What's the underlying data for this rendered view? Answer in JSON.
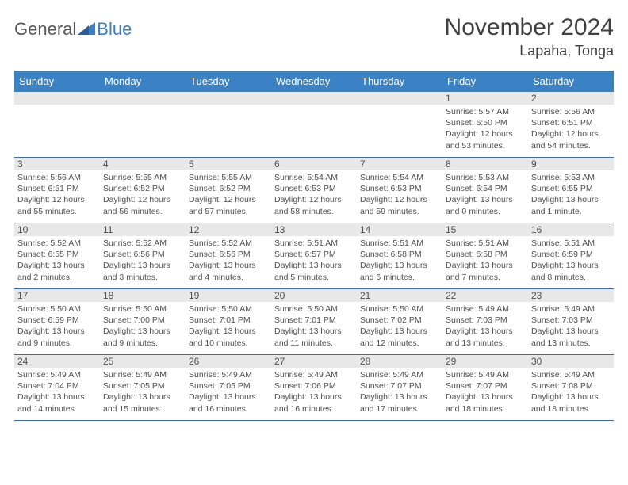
{
  "logo": {
    "general": "General",
    "blue": "Blue",
    "accent_color": "#3b7fc4"
  },
  "header": {
    "month": "November 2024",
    "location": "Lapaha, Tonga"
  },
  "colors": {
    "header_bg": "#3b82c4",
    "header_text": "#ffffff",
    "row_divider": "#3b6ea5",
    "date_strip_bg": "#e8e8e8",
    "text": "#505050"
  },
  "day_names": [
    "Sunday",
    "Monday",
    "Tuesday",
    "Wednesday",
    "Thursday",
    "Friday",
    "Saturday"
  ],
  "weeks": [
    [
      null,
      null,
      null,
      null,
      null,
      {
        "d": "1",
        "sr": "Sunrise: 5:57 AM",
        "ss": "Sunset: 6:50 PM",
        "dl1": "Daylight: 12 hours",
        "dl2": "and 53 minutes."
      },
      {
        "d": "2",
        "sr": "Sunrise: 5:56 AM",
        "ss": "Sunset: 6:51 PM",
        "dl1": "Daylight: 12 hours",
        "dl2": "and 54 minutes."
      }
    ],
    [
      {
        "d": "3",
        "sr": "Sunrise: 5:56 AM",
        "ss": "Sunset: 6:51 PM",
        "dl1": "Daylight: 12 hours",
        "dl2": "and 55 minutes."
      },
      {
        "d": "4",
        "sr": "Sunrise: 5:55 AM",
        "ss": "Sunset: 6:52 PM",
        "dl1": "Daylight: 12 hours",
        "dl2": "and 56 minutes."
      },
      {
        "d": "5",
        "sr": "Sunrise: 5:55 AM",
        "ss": "Sunset: 6:52 PM",
        "dl1": "Daylight: 12 hours",
        "dl2": "and 57 minutes."
      },
      {
        "d": "6",
        "sr": "Sunrise: 5:54 AM",
        "ss": "Sunset: 6:53 PM",
        "dl1": "Daylight: 12 hours",
        "dl2": "and 58 minutes."
      },
      {
        "d": "7",
        "sr": "Sunrise: 5:54 AM",
        "ss": "Sunset: 6:53 PM",
        "dl1": "Daylight: 12 hours",
        "dl2": "and 59 minutes."
      },
      {
        "d": "8",
        "sr": "Sunrise: 5:53 AM",
        "ss": "Sunset: 6:54 PM",
        "dl1": "Daylight: 13 hours",
        "dl2": "and 0 minutes."
      },
      {
        "d": "9",
        "sr": "Sunrise: 5:53 AM",
        "ss": "Sunset: 6:55 PM",
        "dl1": "Daylight: 13 hours",
        "dl2": "and 1 minute."
      }
    ],
    [
      {
        "d": "10",
        "sr": "Sunrise: 5:52 AM",
        "ss": "Sunset: 6:55 PM",
        "dl1": "Daylight: 13 hours",
        "dl2": "and 2 minutes."
      },
      {
        "d": "11",
        "sr": "Sunrise: 5:52 AM",
        "ss": "Sunset: 6:56 PM",
        "dl1": "Daylight: 13 hours",
        "dl2": "and 3 minutes."
      },
      {
        "d": "12",
        "sr": "Sunrise: 5:52 AM",
        "ss": "Sunset: 6:56 PM",
        "dl1": "Daylight: 13 hours",
        "dl2": "and 4 minutes."
      },
      {
        "d": "13",
        "sr": "Sunrise: 5:51 AM",
        "ss": "Sunset: 6:57 PM",
        "dl1": "Daylight: 13 hours",
        "dl2": "and 5 minutes."
      },
      {
        "d": "14",
        "sr": "Sunrise: 5:51 AM",
        "ss": "Sunset: 6:58 PM",
        "dl1": "Daylight: 13 hours",
        "dl2": "and 6 minutes."
      },
      {
        "d": "15",
        "sr": "Sunrise: 5:51 AM",
        "ss": "Sunset: 6:58 PM",
        "dl1": "Daylight: 13 hours",
        "dl2": "and 7 minutes."
      },
      {
        "d": "16",
        "sr": "Sunrise: 5:51 AM",
        "ss": "Sunset: 6:59 PM",
        "dl1": "Daylight: 13 hours",
        "dl2": "and 8 minutes."
      }
    ],
    [
      {
        "d": "17",
        "sr": "Sunrise: 5:50 AM",
        "ss": "Sunset: 6:59 PM",
        "dl1": "Daylight: 13 hours",
        "dl2": "and 9 minutes."
      },
      {
        "d": "18",
        "sr": "Sunrise: 5:50 AM",
        "ss": "Sunset: 7:00 PM",
        "dl1": "Daylight: 13 hours",
        "dl2": "and 9 minutes."
      },
      {
        "d": "19",
        "sr": "Sunrise: 5:50 AM",
        "ss": "Sunset: 7:01 PM",
        "dl1": "Daylight: 13 hours",
        "dl2": "and 10 minutes."
      },
      {
        "d": "20",
        "sr": "Sunrise: 5:50 AM",
        "ss": "Sunset: 7:01 PM",
        "dl1": "Daylight: 13 hours",
        "dl2": "and 11 minutes."
      },
      {
        "d": "21",
        "sr": "Sunrise: 5:50 AM",
        "ss": "Sunset: 7:02 PM",
        "dl1": "Daylight: 13 hours",
        "dl2": "and 12 minutes."
      },
      {
        "d": "22",
        "sr": "Sunrise: 5:49 AM",
        "ss": "Sunset: 7:03 PM",
        "dl1": "Daylight: 13 hours",
        "dl2": "and 13 minutes."
      },
      {
        "d": "23",
        "sr": "Sunrise: 5:49 AM",
        "ss": "Sunset: 7:03 PM",
        "dl1": "Daylight: 13 hours",
        "dl2": "and 13 minutes."
      }
    ],
    [
      {
        "d": "24",
        "sr": "Sunrise: 5:49 AM",
        "ss": "Sunset: 7:04 PM",
        "dl1": "Daylight: 13 hours",
        "dl2": "and 14 minutes."
      },
      {
        "d": "25",
        "sr": "Sunrise: 5:49 AM",
        "ss": "Sunset: 7:05 PM",
        "dl1": "Daylight: 13 hours",
        "dl2": "and 15 minutes."
      },
      {
        "d": "26",
        "sr": "Sunrise: 5:49 AM",
        "ss": "Sunset: 7:05 PM",
        "dl1": "Daylight: 13 hours",
        "dl2": "and 16 minutes."
      },
      {
        "d": "27",
        "sr": "Sunrise: 5:49 AM",
        "ss": "Sunset: 7:06 PM",
        "dl1": "Daylight: 13 hours",
        "dl2": "and 16 minutes."
      },
      {
        "d": "28",
        "sr": "Sunrise: 5:49 AM",
        "ss": "Sunset: 7:07 PM",
        "dl1": "Daylight: 13 hours",
        "dl2": "and 17 minutes."
      },
      {
        "d": "29",
        "sr": "Sunrise: 5:49 AM",
        "ss": "Sunset: 7:07 PM",
        "dl1": "Daylight: 13 hours",
        "dl2": "and 18 minutes."
      },
      {
        "d": "30",
        "sr": "Sunrise: 5:49 AM",
        "ss": "Sunset: 7:08 PM",
        "dl1": "Daylight: 13 hours",
        "dl2": "and 18 minutes."
      }
    ]
  ]
}
